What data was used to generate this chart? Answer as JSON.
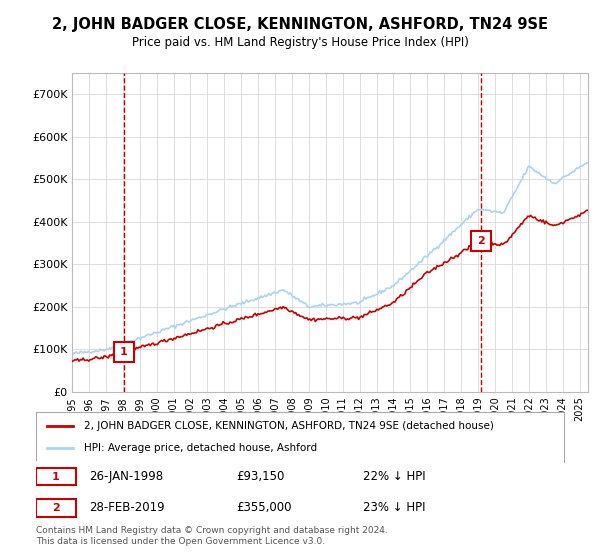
{
  "title": "2, JOHN BADGER CLOSE, KENNINGTON, ASHFORD, TN24 9SE",
  "subtitle": "Price paid vs. HM Land Registry's House Price Index (HPI)",
  "hpi_label": "HPI: Average price, detached house, Ashford",
  "property_label": "2, JOHN BADGER CLOSE, KENNINGTON, ASHFORD, TN24 9SE (detached house)",
  "hpi_color": "#aad4f5",
  "property_color": "#cc0000",
  "sale1_date": "26-JAN-1998",
  "sale1_price": 93150,
  "sale1_hpi_pct": "22% ↓ HPI",
  "sale2_date": "28-FEB-2019",
  "sale2_price": 355000,
  "sale2_hpi_pct": "23% ↓ HPI",
  "sale1_x": 1998.07,
  "sale2_x": 2019.16,
  "ylim_min": 0,
  "ylim_max": 750000,
  "xlim_min": 1995,
  "xlim_max": 2025.5,
  "footer": "Contains HM Land Registry data © Crown copyright and database right 2024.\nThis data is licensed under the Open Government Licence v3.0.",
  "background_color": "#ffffff",
  "grid_color": "#dddddd"
}
